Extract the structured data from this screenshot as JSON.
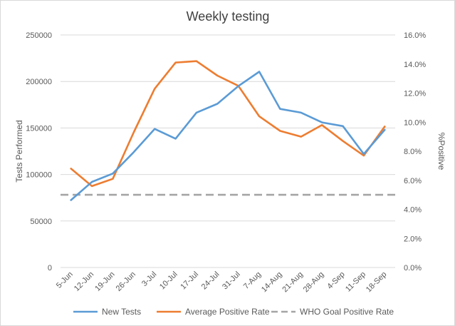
{
  "chart_data": {
    "type": "line",
    "title": "Weekly testing",
    "xlabel": "",
    "ylabel": "Tests Performed",
    "y2label": "%Positive",
    "categories": [
      "5-Jun",
      "12-Jun",
      "19-Jun",
      "26-Jun",
      "3-Jul",
      "10-Jul",
      "17-Jul",
      "24-Jul",
      "31-Jul",
      "7-Aug",
      "14-Aug",
      "21-Aug",
      "28-Aug",
      "4-Sep",
      "11-Sep",
      "18-Sep"
    ],
    "ylim": [
      0,
      250000
    ],
    "yticks": [
      0,
      50000,
      100000,
      150000,
      200000,
      250000
    ],
    "y2lim": [
      0,
      0.16
    ],
    "y2ticks": [
      "0.0%",
      "2.0%",
      "4.0%",
      "6.0%",
      "8.0%",
      "10.0%",
      "12.0%",
      "14.0%",
      "16.0%"
    ],
    "grid": true,
    "legend_position": "bottom",
    "series": [
      {
        "name": "New Tests",
        "axis": "left",
        "color": "#5B9BD5",
        "values": [
          72500,
          92000,
          101000,
          124000,
          149000,
          138500,
          166500,
          176000,
          195000,
          210500,
          170500,
          166500,
          156000,
          152000,
          122000,
          148000
        ]
      },
      {
        "name": "Average Positive Rate",
        "axis": "right",
        "color": "#ED7D31",
        "values": [
          0.068,
          0.056,
          0.061,
          0.093,
          0.123,
          0.141,
          0.142,
          0.132,
          0.125,
          0.104,
          0.094,
          0.09,
          0.098,
          0.087,
          0.077,
          0.097
        ]
      },
      {
        "name": "WHO Goal Positive Rate",
        "axis": "right",
        "color": "#A5A5A5",
        "dashed": true,
        "values": [
          0.05,
          0.05,
          0.05,
          0.05,
          0.05,
          0.05,
          0.05,
          0.05,
          0.05,
          0.05,
          0.05,
          0.05,
          0.05,
          0.05,
          0.05,
          0.05
        ]
      }
    ]
  }
}
